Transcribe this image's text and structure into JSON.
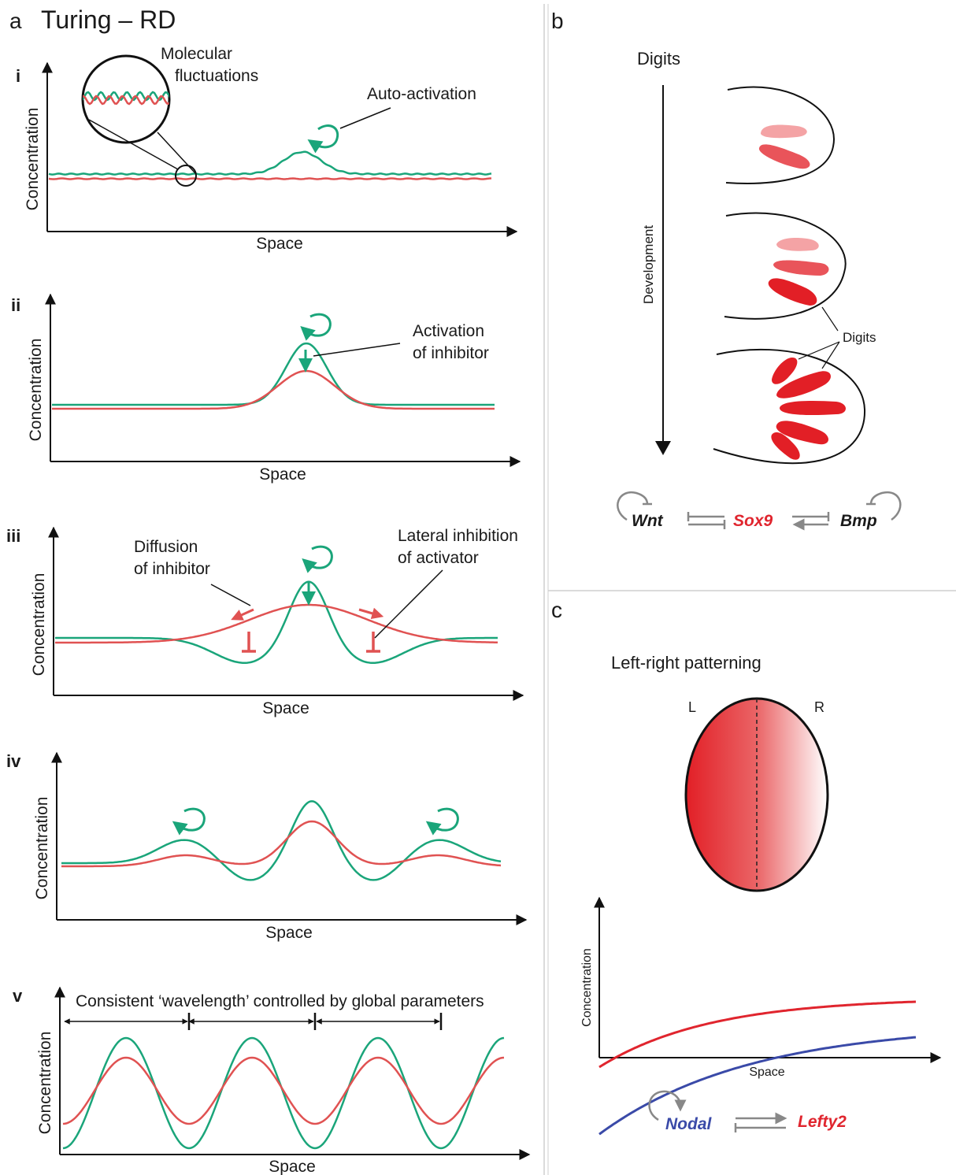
{
  "panel_a": {
    "letter": "a",
    "title": "Turing – RD",
    "sub_i": {
      "numeral": "i",
      "ylabel": "Concentration",
      "xlabel": "Space",
      "callout_molecular": "Molecular",
      "callout_fluctuations": "fluctuations",
      "callout_auto": "Auto-activation"
    },
    "sub_ii": {
      "numeral": "ii",
      "ylabel": "Concentration",
      "xlabel": "Space",
      "callout_line1": "Activation",
      "callout_line2": "of inhibitor"
    },
    "sub_iii": {
      "numeral": "iii",
      "ylabel": "Concentration",
      "xlabel": "Space",
      "diffusion_line1": "Diffusion",
      "diffusion_line2": "of inhibitor",
      "lateral_line1": "Lateral inhibition",
      "lateral_line2": "of activator"
    },
    "sub_iv": {
      "numeral": "iv",
      "ylabel": "Concentration",
      "xlabel": "Space"
    },
    "sub_v": {
      "numeral": "v",
      "ylabel": "Concentration",
      "xlabel": "Space",
      "wavelength_note": "Consistent ‘wavelength’ controlled by global parameters"
    }
  },
  "panel_b": {
    "letter": "b",
    "heading": "Digits",
    "axis_label": "Development",
    "digits_label": "Digits",
    "gene_wnt": "Wnt",
    "gene_sox9": "Sox9",
    "gene_bmp": "Bmp"
  },
  "panel_c": {
    "letter": "c",
    "heading": "Left-right patterning",
    "left_label": "L",
    "right_label": "R",
    "ylabel": "Concentration",
    "xlabel": "Space",
    "gene_nodal": "Nodal",
    "gene_lefty2": "Lefty2"
  },
  "colors": {
    "activator": "#1aa57a",
    "inhibitor": "#e05252",
    "nodal": "#3a4aa8",
    "lefty": "#e0252e",
    "axis": "#111111",
    "gray": "#888888"
  }
}
